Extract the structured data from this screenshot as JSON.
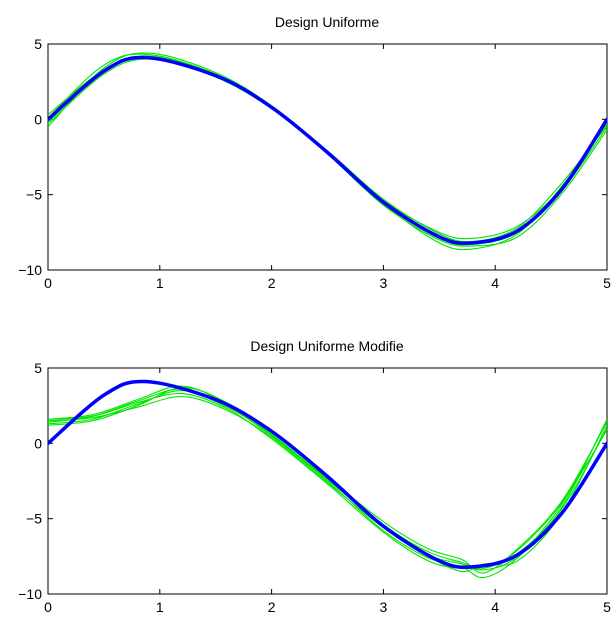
{
  "chart_data": [
    {
      "type": "line",
      "title": "Design Uniforme",
      "xlim": [
        0,
        5
      ],
      "ylim": [
        -10,
        5
      ],
      "xticks": [
        0,
        1,
        2,
        3,
        4,
        5
      ],
      "yticks": [
        5,
        0,
        -5,
        -10
      ],
      "x_tick_labels": [
        "0",
        "1",
        "2",
        "3",
        "4",
        "5"
      ],
      "y_tick_labels": [
        "5",
        "0",
        "−5",
        "−10"
      ],
      "grid": false,
      "colors": {
        "true_curve": "#0000ff",
        "estimates": "#00e600"
      },
      "true_curve": {
        "x": [
          0,
          0.5,
          0.87,
          1.5,
          2.0,
          2.5,
          3.0,
          3.5,
          3.8,
          4.2,
          4.6,
          5.0
        ],
        "y": [
          0,
          3.2,
          4.1,
          2.9,
          0.8,
          -2.2,
          -5.5,
          -7.8,
          -8.2,
          -7.4,
          -4.6,
          0
        ]
      },
      "estimates": [
        {
          "x": [
            0,
            0.5,
            0.9,
            1.5,
            2.0,
            2.5,
            3.0,
            3.5,
            3.8,
            4.2,
            4.6,
            5.0
          ],
          "y": [
            -0.5,
            3.4,
            4.4,
            3.1,
            0.9,
            -2.2,
            -5.6,
            -8.2,
            -8.6,
            -7.6,
            -4.4,
            -0.3
          ]
        },
        {
          "x": [
            0,
            0.5,
            0.9,
            1.5,
            2.0,
            2.5,
            3.0,
            3.5,
            3.8,
            4.2,
            4.6,
            5.0
          ],
          "y": [
            0.3,
            3.3,
            4.2,
            3.0,
            0.8,
            -2.1,
            -5.3,
            -7.6,
            -8.1,
            -7.2,
            -4.2,
            -0.4
          ]
        },
        {
          "x": [
            0,
            0.5,
            0.9,
            1.5,
            2.0,
            2.5,
            3.0,
            3.5,
            3.8,
            4.2,
            4.6,
            5.0
          ],
          "y": [
            -0.3,
            3.0,
            4.0,
            2.8,
            0.7,
            -2.3,
            -5.7,
            -8.0,
            -8.4,
            -7.8,
            -4.9,
            -0.7
          ]
        },
        {
          "x": [
            0,
            0.5,
            0.9,
            1.5,
            2.0,
            2.5,
            3.0,
            3.5,
            3.8,
            4.2,
            4.6,
            5.0
          ],
          "y": [
            0.1,
            3.6,
            4.3,
            3.0,
            0.8,
            -2.2,
            -5.4,
            -7.5,
            -7.9,
            -7.1,
            -4.5,
            -0.2
          ]
        },
        {
          "x": [
            0,
            0.5,
            0.9,
            1.5,
            2.0,
            2.5,
            3.0,
            3.5,
            3.8,
            4.2,
            4.6,
            5.0
          ],
          "y": [
            -0.2,
            3.2,
            4.1,
            2.9,
            0.8,
            -2.2,
            -5.5,
            -7.9,
            -8.3,
            -7.5,
            -4.7,
            -0.5
          ]
        }
      ]
    },
    {
      "type": "line",
      "title": "Design Uniforme Modifie",
      "xlim": [
        0,
        5
      ],
      "ylim": [
        -10,
        5
      ],
      "xticks": [
        0,
        1,
        2,
        3,
        4,
        5
      ],
      "yticks": [
        5,
        0,
        -5,
        -10
      ],
      "x_tick_labels": [
        "0",
        "1",
        "2",
        "3",
        "4",
        "5"
      ],
      "y_tick_labels": [
        "5",
        "0",
        "−5",
        "−10"
      ],
      "grid": false,
      "colors": {
        "true_curve": "#0000ff",
        "estimates": "#00e600"
      },
      "true_curve": {
        "x": [
          0,
          0.5,
          0.87,
          1.5,
          2.0,
          2.5,
          3.0,
          3.5,
          3.8,
          4.2,
          4.6,
          5.0
        ],
        "y": [
          0,
          3.2,
          4.1,
          2.9,
          0.8,
          -2.2,
          -5.5,
          -7.8,
          -8.2,
          -7.4,
          -4.6,
          0
        ]
      },
      "estimates": [
        {
          "x": [
            0,
            0.4,
            0.8,
            1.2,
            1.6,
            2.0,
            2.5,
            3.0,
            3.4,
            3.7,
            3.9,
            4.2,
            4.6,
            5.0
          ],
          "y": [
            1.6,
            1.9,
            2.9,
            3.8,
            2.6,
            0.5,
            -2.5,
            -5.8,
            -7.6,
            -8.2,
            -8.9,
            -7.6,
            -4.2,
            1.6
          ]
        },
        {
          "x": [
            0,
            0.4,
            0.8,
            1.2,
            1.6,
            2.0,
            2.5,
            3.0,
            3.4,
            3.7,
            3.9,
            4.2,
            4.6,
            5.0
          ],
          "y": [
            1.3,
            1.6,
            2.6,
            3.5,
            2.4,
            0.6,
            -2.4,
            -5.4,
            -7.2,
            -7.9,
            -8.3,
            -7.1,
            -3.9,
            0.9
          ]
        },
        {
          "x": [
            0,
            0.4,
            0.8,
            1.2,
            1.6,
            2.0,
            2.5,
            3.0,
            3.4,
            3.7,
            3.9,
            4.2,
            4.6,
            5.0
          ],
          "y": [
            1.5,
            1.7,
            2.4,
            3.1,
            2.2,
            0.4,
            -2.6,
            -5.6,
            -7.5,
            -8.5,
            -8.0,
            -7.8,
            -4.6,
            1.2
          ]
        },
        {
          "x": [
            0,
            0.4,
            0.8,
            1.2,
            1.6,
            2.0,
            2.5,
            3.0,
            3.4,
            3.7,
            3.9,
            4.2,
            4.6,
            5.0
          ],
          "y": [
            1.4,
            1.8,
            2.8,
            3.6,
            2.5,
            0.5,
            -2.3,
            -5.2,
            -7.0,
            -7.7,
            -8.6,
            -7.0,
            -3.8,
            1.4
          ]
        },
        {
          "x": [
            0,
            0.4,
            0.8,
            1.2,
            1.6,
            2.0,
            2.5,
            3.0,
            3.4,
            3.7,
            3.9,
            4.2,
            4.6,
            5.0
          ],
          "y": [
            1.6,
            1.8,
            2.7,
            3.3,
            2.3,
            0.3,
            -2.7,
            -5.9,
            -7.8,
            -8.3,
            -8.1,
            -7.3,
            -4.3,
            1.0
          ]
        },
        {
          "x": [
            0,
            0.4,
            0.8,
            1.2,
            1.6,
            2.0,
            2.5,
            3.0,
            3.4,
            3.7,
            3.9,
            4.2,
            4.6,
            5.0
          ],
          "y": [
            1.2,
            1.5,
            2.5,
            3.7,
            2.7,
            0.6,
            -2.4,
            -5.5,
            -7.4,
            -8.0,
            -8.4,
            -7.5,
            -4.0,
            1.5
          ]
        }
      ]
    }
  ]
}
